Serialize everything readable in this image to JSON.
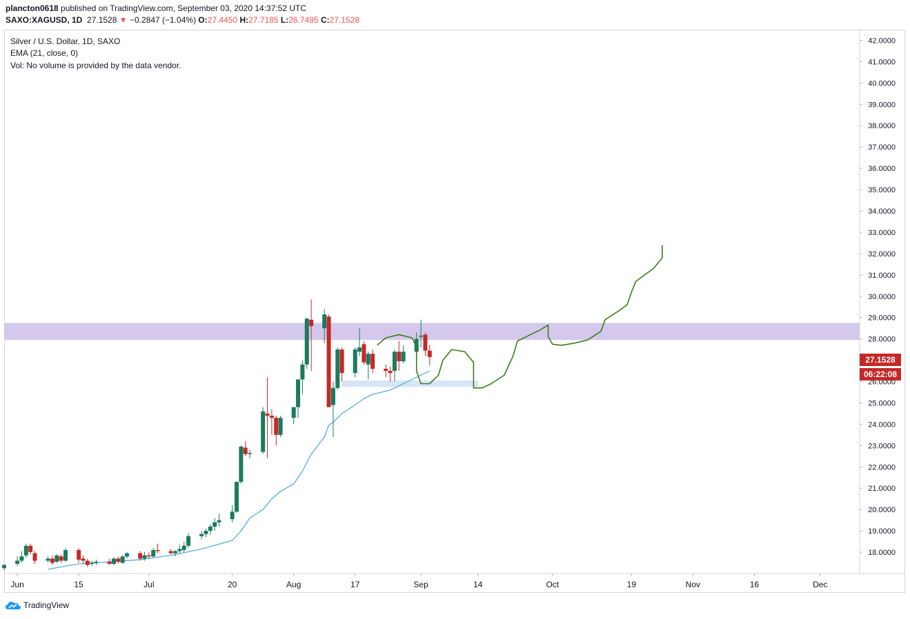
{
  "header": {
    "author": "plancton0618",
    "published_text": "published on TradingView.com, September 03, 2020 14:37:52 UTC",
    "symbol": "SAXO:XAGUSD, 1D",
    "last": "27.1528",
    "change": "−0.2847 (−1.04%)",
    "open_label": "O:",
    "open": "27.4450",
    "high_label": "H:",
    "high": "27.7185",
    "low_label": "L:",
    "low": "26.7495",
    "close_label": "C:",
    "close": "27.1528"
  },
  "legend": {
    "title": "Silver / U.S. Dollar, 1D, SAXO",
    "ema": "EMA (21, close, 0)",
    "vol": "Vol: No volume is provided by the data vendor."
  },
  "price_badge": {
    "price": "27.1528",
    "countdown": "06:22:08",
    "color": "#c62828"
  },
  "footer": {
    "brand": "TradingView"
  },
  "colors": {
    "up": "#1b7a5f",
    "down": "#c62828",
    "ema": "#4aa3df",
    "zone": "#cfc3ea",
    "support": "#cfe1f6",
    "projection": "#3a7d1a"
  },
  "chart_data": {
    "type": "candlestick",
    "title": "Silver / U.S. Dollar, 1D, SAXO",
    "y_axis": {
      "range": [
        17.0,
        42.5
      ],
      "ticks": [
        "18.0000",
        "19.0000",
        "20.0000",
        "21.0000",
        "22.0000",
        "23.0000",
        "24.0000",
        "25.0000",
        "26.0000",
        "27.0000",
        "28.0000",
        "29.0000",
        "30.0000",
        "31.0000",
        "32.0000",
        "33.0000",
        "34.0000",
        "35.0000",
        "36.0000",
        "37.0000",
        "38.0000",
        "39.0000",
        "40.0000",
        "41.0000",
        "42.0000"
      ]
    },
    "x_axis": {
      "range": [
        "2020-05-29",
        "2020-12-10"
      ],
      "ticks": [
        {
          "label": "Jun",
          "date": "2020-06-01"
        },
        {
          "label": "15",
          "date": "2020-06-15"
        },
        {
          "label": "Jul",
          "date": "2020-07-01"
        },
        {
          "label": "20",
          "date": "2020-07-20"
        },
        {
          "label": "Aug",
          "date": "2020-08-03"
        },
        {
          "label": "17",
          "date": "2020-08-17"
        },
        {
          "label": "Sep",
          "date": "2020-09-01"
        },
        {
          "label": "14",
          "date": "2020-09-14"
        },
        {
          "label": "Oct",
          "date": "2020-10-01"
        },
        {
          "label": "19",
          "date": "2020-10-19"
        },
        {
          "label": "Nov",
          "date": "2020-11-02"
        },
        {
          "label": "16",
          "date": "2020-11-16"
        },
        {
          "label": "Dec",
          "date": "2020-12-01"
        }
      ]
    },
    "candles": [
      {
        "date": "2020-05-29",
        "o": 17.25,
        "h": 17.45,
        "l": 17.15,
        "c": 17.4
      },
      {
        "date": "2020-06-01",
        "o": 17.45,
        "h": 17.8,
        "l": 17.35,
        "c": 17.6
      },
      {
        "date": "2020-06-02",
        "o": 17.6,
        "h": 18.05,
        "l": 17.5,
        "c": 17.8
      },
      {
        "date": "2020-06-03",
        "o": 17.85,
        "h": 18.4,
        "l": 17.75,
        "c": 18.3
      },
      {
        "date": "2020-06-04",
        "o": 18.3,
        "h": 18.4,
        "l": 17.9,
        "c": 18.0
      },
      {
        "date": "2020-06-05",
        "o": 17.95,
        "h": 18.05,
        "l": 17.45,
        "c": 17.6
      },
      {
        "date": "2020-06-08",
        "o": 17.6,
        "h": 17.8,
        "l": 17.5,
        "c": 17.7
      },
      {
        "date": "2020-06-09",
        "o": 17.7,
        "h": 17.85,
        "l": 17.4,
        "c": 17.5
      },
      {
        "date": "2020-06-10",
        "o": 17.55,
        "h": 17.9,
        "l": 17.5,
        "c": 17.85
      },
      {
        "date": "2020-06-11",
        "o": 17.8,
        "h": 17.9,
        "l": 17.5,
        "c": 17.6
      },
      {
        "date": "2020-06-12",
        "o": 17.6,
        "h": 18.2,
        "l": 17.55,
        "c": 18.1
      },
      {
        "date": "2020-06-15",
        "o": 18.1,
        "h": 18.2,
        "l": 17.5,
        "c": 17.65
      },
      {
        "date": "2020-06-16",
        "o": 17.7,
        "h": 17.85,
        "l": 17.45,
        "c": 17.6
      },
      {
        "date": "2020-06-17",
        "o": 17.6,
        "h": 17.7,
        "l": 17.3,
        "c": 17.4
      },
      {
        "date": "2020-06-18",
        "o": 17.45,
        "h": 17.6,
        "l": 17.35,
        "c": 17.5
      },
      {
        "date": "2020-06-19",
        "o": 17.5,
        "h": 17.65,
        "l": 17.4,
        "c": 17.55
      },
      {
        "date": "2020-06-22",
        "o": 17.55,
        "h": 17.7,
        "l": 17.4,
        "c": 17.45
      },
      {
        "date": "2020-06-23",
        "o": 17.45,
        "h": 17.75,
        "l": 17.4,
        "c": 17.7
      },
      {
        "date": "2020-06-24",
        "o": 17.7,
        "h": 17.8,
        "l": 17.45,
        "c": 17.55
      },
      {
        "date": "2020-06-25",
        "o": 17.5,
        "h": 17.85,
        "l": 17.45,
        "c": 17.8
      },
      {
        "date": "2020-06-26",
        "o": 17.8,
        "h": 18.0,
        "l": 17.7,
        "c": 17.95
      },
      {
        "date": "2020-06-29",
        "o": 17.95,
        "h": 18.05,
        "l": 17.6,
        "c": 17.7
      },
      {
        "date": "2020-06-30",
        "o": 17.7,
        "h": 18.0,
        "l": 17.6,
        "c": 17.85
      },
      {
        "date": "2020-07-01",
        "o": 17.85,
        "h": 18.0,
        "l": 17.7,
        "c": 17.8
      },
      {
        "date": "2020-07-02",
        "o": 17.8,
        "h": 18.2,
        "l": 17.75,
        "c": 18.1
      },
      {
        "date": "2020-07-03",
        "o": 18.1,
        "h": 18.4,
        "l": 17.95,
        "c": 18.05
      },
      {
        "date": "2020-07-06",
        "o": 18.05,
        "h": 18.15,
        "l": 17.9,
        "c": 17.95
      },
      {
        "date": "2020-07-07",
        "o": 17.95,
        "h": 18.1,
        "l": 17.8,
        "c": 18.05
      },
      {
        "date": "2020-07-08",
        "o": 18.05,
        "h": 18.35,
        "l": 17.95,
        "c": 18.15
      },
      {
        "date": "2020-07-09",
        "o": 18.1,
        "h": 18.5,
        "l": 18.0,
        "c": 18.3
      },
      {
        "date": "2020-07-10",
        "o": 18.3,
        "h": 18.9,
        "l": 18.2,
        "c": 18.75
      },
      {
        "date": "2020-07-13",
        "o": 18.75,
        "h": 19.0,
        "l": 18.6,
        "c": 18.85
      },
      {
        "date": "2020-07-14",
        "o": 18.85,
        "h": 19.1,
        "l": 18.7,
        "c": 19.0
      },
      {
        "date": "2020-07-15",
        "o": 19.0,
        "h": 19.3,
        "l": 18.8,
        "c": 19.2
      },
      {
        "date": "2020-07-16",
        "o": 19.2,
        "h": 19.6,
        "l": 19.0,
        "c": 19.4
      },
      {
        "date": "2020-07-17",
        "o": 19.4,
        "h": 19.8,
        "l": 19.2,
        "c": 19.5
      },
      {
        "date": "2020-07-20",
        "o": 19.55,
        "h": 20.2,
        "l": 19.4,
        "c": 19.9
      },
      {
        "date": "2020-07-21",
        "o": 19.9,
        "h": 21.3,
        "l": 19.85,
        "c": 21.3
      },
      {
        "date": "2020-07-22",
        "o": 21.3,
        "h": 23.0,
        "l": 21.2,
        "c": 22.95
      },
      {
        "date": "2020-07-23",
        "o": 22.9,
        "h": 23.2,
        "l": 22.5,
        "c": 22.6
      },
      {
        "date": "2020-07-24",
        "o": 22.6,
        "h": 22.8,
        "l": 22.4,
        "c": 22.65
      },
      {
        "date": "2020-07-27",
        "o": 22.7,
        "h": 24.8,
        "l": 22.6,
        "c": 24.6
      },
      {
        "date": "2020-07-28",
        "o": 24.5,
        "h": 26.2,
        "l": 22.4,
        "c": 24.4
      },
      {
        "date": "2020-07-29",
        "o": 24.4,
        "h": 24.7,
        "l": 23.5,
        "c": 24.3
      },
      {
        "date": "2020-07-30",
        "o": 24.3,
        "h": 24.4,
        "l": 23.0,
        "c": 23.5
      },
      {
        "date": "2020-07-31",
        "o": 23.5,
        "h": 24.4,
        "l": 23.4,
        "c": 24.3
      },
      {
        "date": "2020-08-03",
        "o": 24.3,
        "h": 24.8,
        "l": 24.0,
        "c": 24.8
      },
      {
        "date": "2020-08-04",
        "o": 24.8,
        "h": 26.1,
        "l": 24.3,
        "c": 26.1
      },
      {
        "date": "2020-08-05",
        "o": 26.1,
        "h": 27.0,
        "l": 25.4,
        "c": 26.8
      },
      {
        "date": "2020-08-06",
        "o": 26.8,
        "h": 29.0,
        "l": 26.6,
        "c": 28.95
      },
      {
        "date": "2020-08-07",
        "o": 28.9,
        "h": 29.85,
        "l": 26.5,
        "c": 28.6
      },
      {
        "date": "2020-08-10",
        "o": 28.5,
        "h": 29.4,
        "l": 27.8,
        "c": 29.15
      },
      {
        "date": "2020-08-11",
        "o": 29.05,
        "h": 29.15,
        "l": 24.9,
        "c": 24.8
      },
      {
        "date": "2020-08-12",
        "o": 24.9,
        "h": 26.0,
        "l": 23.4,
        "c": 25.7
      },
      {
        "date": "2020-08-13",
        "o": 25.7,
        "h": 27.6,
        "l": 25.6,
        "c": 27.5
      },
      {
        "date": "2020-08-14",
        "o": 27.5,
        "h": 27.6,
        "l": 26.0,
        "c": 26.4
      },
      {
        "date": "2020-08-17",
        "o": 26.4,
        "h": 27.6,
        "l": 26.2,
        "c": 27.5
      },
      {
        "date": "2020-08-18",
        "o": 27.4,
        "h": 28.5,
        "l": 27.2,
        "c": 27.6
      },
      {
        "date": "2020-08-19",
        "o": 27.75,
        "h": 27.9,
        "l": 26.8,
        "c": 26.9
      },
      {
        "date": "2020-08-20",
        "o": 26.8,
        "h": 27.4,
        "l": 26.1,
        "c": 27.3
      },
      {
        "date": "2020-08-21",
        "o": 27.3,
        "h": 27.5,
        "l": 26.4,
        "c": 26.6
      },
      {
        "date": "2020-08-24",
        "o": 26.6,
        "h": 26.8,
        "l": 26.2,
        "c": 26.5
      },
      {
        "date": "2020-08-25",
        "o": 26.5,
        "h": 26.7,
        "l": 26.0,
        "c": 26.4
      },
      {
        "date": "2020-08-26",
        "o": 26.5,
        "h": 27.5,
        "l": 26.0,
        "c": 27.4
      },
      {
        "date": "2020-08-27",
        "o": 27.4,
        "h": 27.9,
        "l": 26.5,
        "c": 26.95
      },
      {
        "date": "2020-08-28",
        "o": 26.95,
        "h": 27.7,
        "l": 26.85,
        "c": 27.4
      },
      {
        "date": "2020-08-31",
        "o": 27.4,
        "h": 28.3,
        "l": 27.2,
        "c": 28.0
      },
      {
        "date": "2020-09-01",
        "o": 28.1,
        "h": 28.9,
        "l": 27.6,
        "c": 28.15
      },
      {
        "date": "2020-09-02",
        "o": 28.2,
        "h": 28.3,
        "l": 27.2,
        "c": 27.45
      },
      {
        "date": "2020-09-03",
        "o": 27.45,
        "h": 27.72,
        "l": 26.75,
        "c": 27.15
      }
    ],
    "ema": [
      {
        "date": "2020-06-08",
        "v": 17.2
      },
      {
        "date": "2020-06-15",
        "v": 17.45
      },
      {
        "date": "2020-06-22",
        "v": 17.55
      },
      {
        "date": "2020-06-29",
        "v": 17.65
      },
      {
        "date": "2020-07-06",
        "v": 17.85
      },
      {
        "date": "2020-07-13",
        "v": 18.15
      },
      {
        "date": "2020-07-20",
        "v": 18.55
      },
      {
        "date": "2020-07-22",
        "v": 19.0
      },
      {
        "date": "2020-07-24",
        "v": 19.6
      },
      {
        "date": "2020-07-27",
        "v": 20.0
      },
      {
        "date": "2020-07-29",
        "v": 20.5
      },
      {
        "date": "2020-07-31",
        "v": 20.85
      },
      {
        "date": "2020-08-03",
        "v": 21.2
      },
      {
        "date": "2020-08-05",
        "v": 21.8
      },
      {
        "date": "2020-08-07",
        "v": 22.6
      },
      {
        "date": "2020-08-10",
        "v": 23.4
      },
      {
        "date": "2020-08-11",
        "v": 23.95
      },
      {
        "date": "2020-08-12",
        "v": 24.1
      },
      {
        "date": "2020-08-14",
        "v": 24.5
      },
      {
        "date": "2020-08-17",
        "v": 24.9
      },
      {
        "date": "2020-08-19",
        "v": 25.2
      },
      {
        "date": "2020-08-21",
        "v": 25.4
      },
      {
        "date": "2020-08-25",
        "v": 25.6
      },
      {
        "date": "2020-08-28",
        "v": 25.9
      },
      {
        "date": "2020-09-01",
        "v": 26.3
      },
      {
        "date": "2020-09-03",
        "v": 26.5
      }
    ],
    "zones": [
      {
        "kind": "resistance",
        "y0": 27.95,
        "y1": 28.75,
        "from": "2020-05-29",
        "to": "2020-12-10"
      },
      {
        "kind": "support",
        "y0": 25.75,
        "y1": 26.05,
        "from": "2020-08-14",
        "to": "2020-09-14"
      }
    ],
    "projection": [
      {
        "date": "2020-08-22",
        "v": 27.7
      },
      {
        "date": "2020-08-24",
        "v": 28.05
      },
      {
        "date": "2020-08-27",
        "v": 28.2
      },
      {
        "date": "2020-08-30",
        "v": 28.05
      },
      {
        "date": "2020-08-31",
        "v": 27.6
      },
      {
        "date": "2020-08-31",
        "v": 26.5
      },
      {
        "date": "2020-09-01",
        "v": 25.9
      },
      {
        "date": "2020-09-03",
        "v": 25.9
      },
      {
        "date": "2020-09-05",
        "v": 26.3
      },
      {
        "date": "2020-09-06",
        "v": 27.0
      },
      {
        "date": "2020-09-08",
        "v": 27.5
      },
      {
        "date": "2020-09-11",
        "v": 27.4
      },
      {
        "date": "2020-09-13",
        "v": 26.9
      },
      {
        "date": "2020-09-13",
        "v": 25.7
      },
      {
        "date": "2020-09-15",
        "v": 25.7
      },
      {
        "date": "2020-09-17",
        "v": 25.9
      },
      {
        "date": "2020-09-20",
        "v": 26.3
      },
      {
        "date": "2020-09-22",
        "v": 27.2
      },
      {
        "date": "2020-09-23",
        "v": 27.9
      },
      {
        "date": "2020-09-26",
        "v": 28.2
      },
      {
        "date": "2020-09-28",
        "v": 28.4
      },
      {
        "date": "2020-09-30",
        "v": 28.65
      },
      {
        "date": "2020-09-30",
        "v": 28.1
      },
      {
        "date": "2020-10-01",
        "v": 27.75
      },
      {
        "date": "2020-10-03",
        "v": 27.7
      },
      {
        "date": "2020-10-06",
        "v": 27.8
      },
      {
        "date": "2020-10-09",
        "v": 27.95
      },
      {
        "date": "2020-10-12",
        "v": 28.35
      },
      {
        "date": "2020-10-13",
        "v": 28.9
      },
      {
        "date": "2020-10-16",
        "v": 29.3
      },
      {
        "date": "2020-10-18",
        "v": 29.6
      },
      {
        "date": "2020-10-19",
        "v": 30.2
      },
      {
        "date": "2020-10-20",
        "v": 30.7
      },
      {
        "date": "2020-10-22",
        "v": 31.0
      },
      {
        "date": "2020-10-24",
        "v": 31.3
      },
      {
        "date": "2020-10-26",
        "v": 31.8
      },
      {
        "date": "2020-10-26",
        "v": 32.4
      }
    ]
  }
}
